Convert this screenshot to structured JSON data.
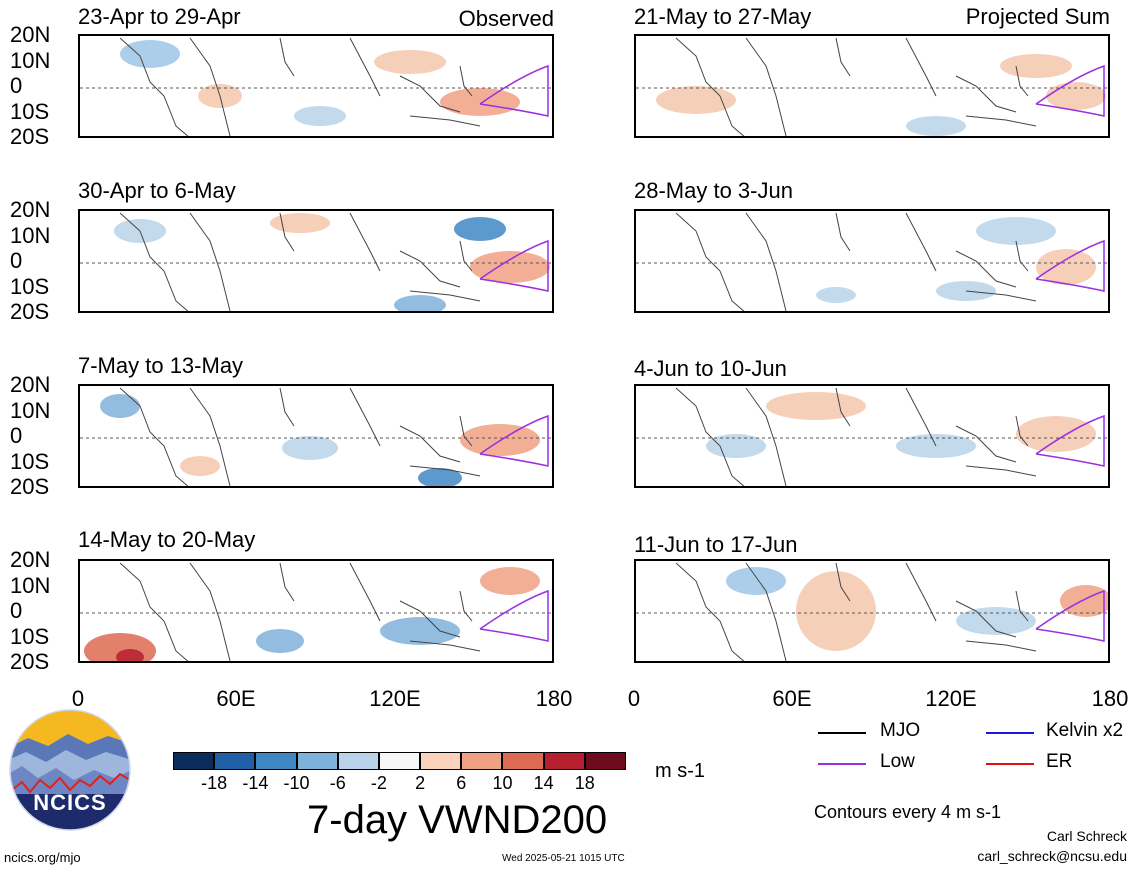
{
  "observed_label": "Observed",
  "projected_label": "Projected Sum",
  "lat_labels": [
    "20N",
    "10N",
    "0",
    "10S",
    "20S"
  ],
  "x_ticks": [
    "0",
    "60E",
    "120E",
    "180"
  ],
  "panels_left": [
    {
      "title": "23-Apr to 29-Apr"
    },
    {
      "title": "30-Apr to 6-May"
    },
    {
      "title": "7-May to 13-May"
    },
    {
      "title": "14-May to 20-May"
    }
  ],
  "panels_right": [
    {
      "title": "21-May to 27-May"
    },
    {
      "title": "28-May to 3-Jun"
    },
    {
      "title": "4-Jun to 10-Jun"
    },
    {
      "title": "11-Jun to 17-Jun"
    }
  ],
  "colorbar": {
    "labels": [
      "-18",
      "-14",
      "-10",
      "-6",
      "-2",
      "2",
      "6",
      "10",
      "14",
      "18"
    ],
    "colors": [
      "#0b2d5b",
      "#1f5fa6",
      "#3f87c4",
      "#7fb2da",
      "#b9d4ea",
      "#f7f7f7",
      "#fbd3bd",
      "#f0a183",
      "#dd6a52",
      "#b51f2e",
      "#6e0b1d"
    ],
    "unit": "m s-1"
  },
  "main_title": "7-day VWND200",
  "legend": [
    {
      "label": "MJO",
      "color": "#000000"
    },
    {
      "label": "Kelvin x2",
      "color": "#1a1adc"
    },
    {
      "label": "Low",
      "color": "#9b30e0"
    },
    {
      "label": "ER",
      "color": "#e01010"
    }
  ],
  "contour_note": "Contours every 4 m s-1",
  "author": "Carl Schreck",
  "email": "carl_schreck@ncsu.edu",
  "url": "ncics.org/mjo",
  "timestamp": "Wed 2025-05-21 1015 UTC",
  "logo_text": "NCICS"
}
